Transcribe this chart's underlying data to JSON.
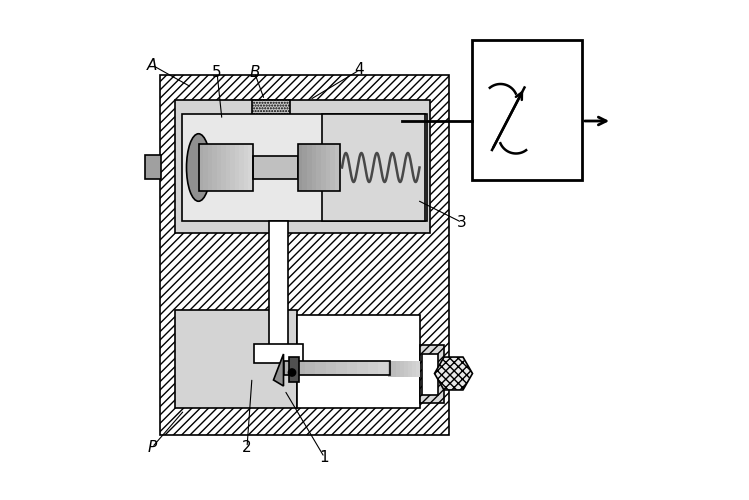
{
  "fig_width": 7.49,
  "fig_height": 5.0,
  "dpi": 100,
  "bg_color": "#ffffff",
  "labels": {
    "A": [
      0.055,
      0.87,
      0.135,
      0.825
    ],
    "5": [
      0.185,
      0.855,
      0.195,
      0.76
    ],
    "B": [
      0.26,
      0.855,
      0.28,
      0.8
    ],
    "4": [
      0.47,
      0.86,
      0.37,
      0.8
    ],
    "3": [
      0.675,
      0.555,
      0.585,
      0.6
    ],
    "2": [
      0.245,
      0.105,
      0.255,
      0.245
    ],
    "1": [
      0.4,
      0.085,
      0.32,
      0.22
    ],
    "P": [
      0.055,
      0.105,
      0.12,
      0.18
    ]
  }
}
